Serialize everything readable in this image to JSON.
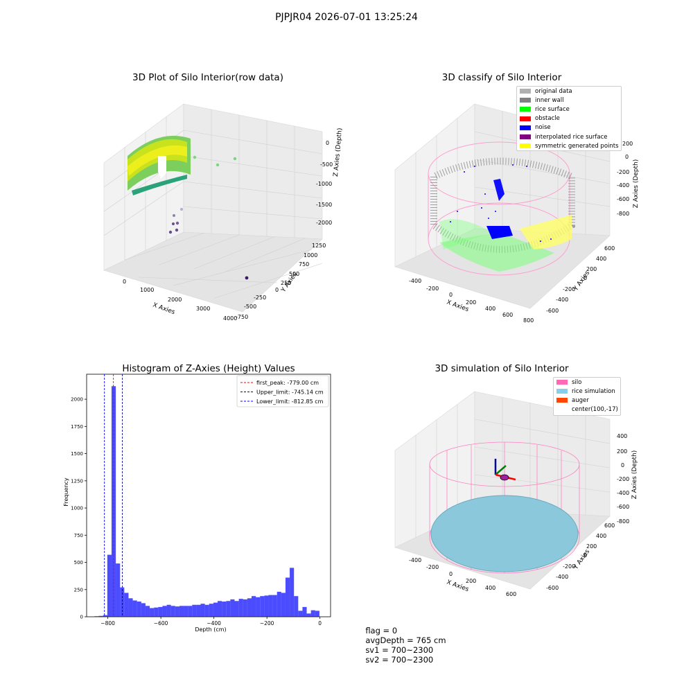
{
  "suptitle": "PJPJR04 2026-07-01 13:25:24",
  "chart_data": [
    {
      "type": "scatter",
      "title": "3D Plot of Silo Interior(row data)",
      "xlabel": "X Axies",
      "ylabel": "Y Axies",
      "zlabel": "Z Axies (Depth)",
      "x_ticks": [
        "0",
        "1000",
        "2000",
        "3000",
        "4000"
      ],
      "y_ticks": [
        "-750",
        "-500",
        "-250",
        "0",
        "250",
        "500",
        "750",
        "1000",
        "1250"
      ],
      "z_ticks": [
        "0",
        "-500",
        "-1000",
        "-1500",
        "-2000"
      ],
      "colormap": [
        "#440154",
        "#3b528b",
        "#21908d",
        "#5dc963",
        "#fde725"
      ]
    },
    {
      "type": "scatter",
      "title": "3D classify of Silo Interior",
      "xlabel": "X Axies",
      "ylabel": "Y Axies",
      "zlabel": "Z Axies (Depth)",
      "x_ticks": [
        "-400",
        "-200",
        "0",
        "200",
        "400",
        "600",
        "800"
      ],
      "y_ticks": [
        "-600",
        "-400",
        "-200",
        "0",
        "200",
        "400",
        "600"
      ],
      "z_ticks": [
        "200",
        "0",
        "-200",
        "-400",
        "-600",
        "-800"
      ],
      "legend_position": "top-right",
      "legend": [
        {
          "label": "original data",
          "color": "#b0b0b0"
        },
        {
          "label": "inner wall",
          "color": "#808080"
        },
        {
          "label": "rice surface",
          "color": "#00ff00"
        },
        {
          "label": "obstacle",
          "color": "#ff0000"
        },
        {
          "label": "noise",
          "color": "#0000ff"
        },
        {
          "label": "interpolated rice surface",
          "color": "#800080"
        },
        {
          "label": "symmetric generated points",
          "color": "#ffff00"
        }
      ]
    },
    {
      "type": "bar",
      "title": "Histogram of Z-Axies (Height) Values",
      "xlabel": "Depth (cm)",
      "ylabel": "Frequency",
      "xlim": [
        -880,
        40
      ],
      "ylim": [
        0,
        2230
      ],
      "x_ticks": [
        -800,
        -600,
        -400,
        -200,
        0
      ],
      "y_ticks": [
        0,
        250,
        500,
        750,
        1000,
        1250,
        1500,
        1750,
        2000
      ],
      "bar_color": "#0000ff",
      "bin_edges": [
        -850,
        -834,
        -818,
        -802,
        -786,
        -770,
        -754,
        -738,
        -722,
        -706,
        -690,
        -674,
        -658,
        -642,
        -626,
        -610,
        -594,
        -578,
        -562,
        -546,
        -530,
        -514,
        -498,
        -482,
        -466,
        -450,
        -434,
        -418,
        -402,
        -386,
        -370,
        -354,
        -338,
        -322,
        -306,
        -290,
        -274,
        -258,
        -242,
        -226,
        -210,
        -194,
        -178,
        -162,
        -146,
        -130,
        -114,
        -98,
        -82,
        -66,
        -50,
        -34,
        -18,
        -2,
        14
      ],
      "values": [
        5,
        8,
        15,
        570,
        2120,
        490,
        270,
        220,
        170,
        150,
        140,
        125,
        100,
        80,
        85,
        90,
        100,
        110,
        100,
        95,
        100,
        100,
        100,
        110,
        110,
        120,
        110,
        120,
        130,
        145,
        140,
        145,
        160,
        145,
        165,
        160,
        170,
        190,
        180,
        190,
        195,
        200,
        200,
        230,
        220,
        360,
        450,
        190,
        55,
        90,
        30,
        60,
        55,
        0
      ],
      "lines": [
        {
          "value": -779.0,
          "color": "#ff0000",
          "label": "first_peak: -779.00 cm"
        },
        {
          "value": -745.14,
          "color": "#00008b",
          "label": "Upper_limit: -745.14 cm"
        },
        {
          "value": -812.85,
          "color": "#0000ff",
          "label": "Lower_limit: -812.85 cm"
        }
      ],
      "legend_position": "top-right"
    },
    {
      "type": "scatter",
      "title": "3D simulation of Silo Interior",
      "xlabel": "X Axies",
      "ylabel": "Y Axies",
      "zlabel": "Z Axies (Depth)",
      "x_ticks": [
        "-400",
        "-200",
        "0",
        "200",
        "400",
        "600"
      ],
      "y_ticks": [
        "-600",
        "-400",
        "-200",
        "0",
        "200",
        "400",
        "600"
      ],
      "z_ticks": [
        "400",
        "200",
        "0",
        "-200",
        "-400",
        "-600",
        "-800"
      ],
      "legend_position": "top-right",
      "legend": [
        {
          "label": "silo",
          "color": "#ff69b4"
        },
        {
          "label": "rice simulation",
          "color": "#87ceeb"
        },
        {
          "label": "auger",
          "color": "#ff4500"
        },
        {
          "label": "center(100,-17)",
          "color": ""
        }
      ]
    }
  ],
  "status": {
    "flag": "flag = 0",
    "avg_depth": "avgDepth = 765 cm",
    "sv1": "sv1 = 700~2300",
    "sv2": "sv2 = 700~2300"
  }
}
